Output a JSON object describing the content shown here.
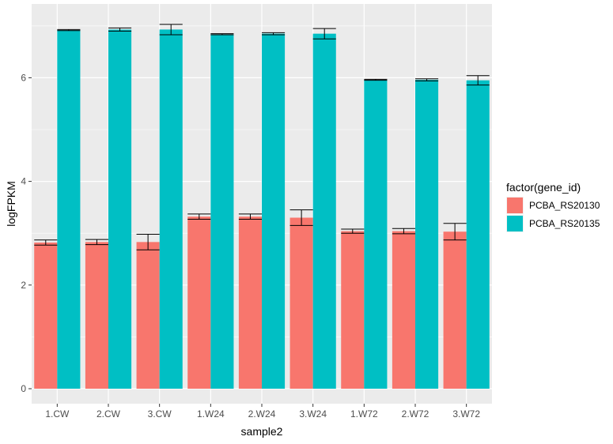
{
  "chart_data": {
    "type": "bar",
    "xlabel": "sample2",
    "ylabel": "logFPKM",
    "ylim": [
      -0.35,
      7.3
    ],
    "yticks": [
      0,
      2,
      4,
      6
    ],
    "grid": true,
    "legend": {
      "title": "factor(gene_id)",
      "placement": "right"
    },
    "categories": [
      "1.CW",
      "2.CW",
      "3.CW",
      "1.W24",
      "2.W24",
      "3.W24",
      "1.W72",
      "2.W72",
      "3.W72"
    ],
    "series": [
      {
        "name": "PCBA_RS20130",
        "color": "#F8766D",
        "values": [
          2.82,
          2.83,
          2.83,
          3.32,
          3.32,
          3.3,
          3.04,
          3.04,
          3.03
        ],
        "error": [
          0.05,
          0.05,
          0.15,
          0.05,
          0.05,
          0.15,
          0.04,
          0.05,
          0.16
        ]
      },
      {
        "name": "PCBA_RS20135",
        "color": "#00BFC4",
        "values": [
          6.92,
          6.93,
          6.93,
          6.84,
          6.85,
          6.85,
          5.96,
          5.96,
          5.95
        ],
        "error": [
          0.01,
          0.03,
          0.1,
          0.01,
          0.02,
          0.1,
          0.01,
          0.02,
          0.09
        ]
      }
    ]
  }
}
